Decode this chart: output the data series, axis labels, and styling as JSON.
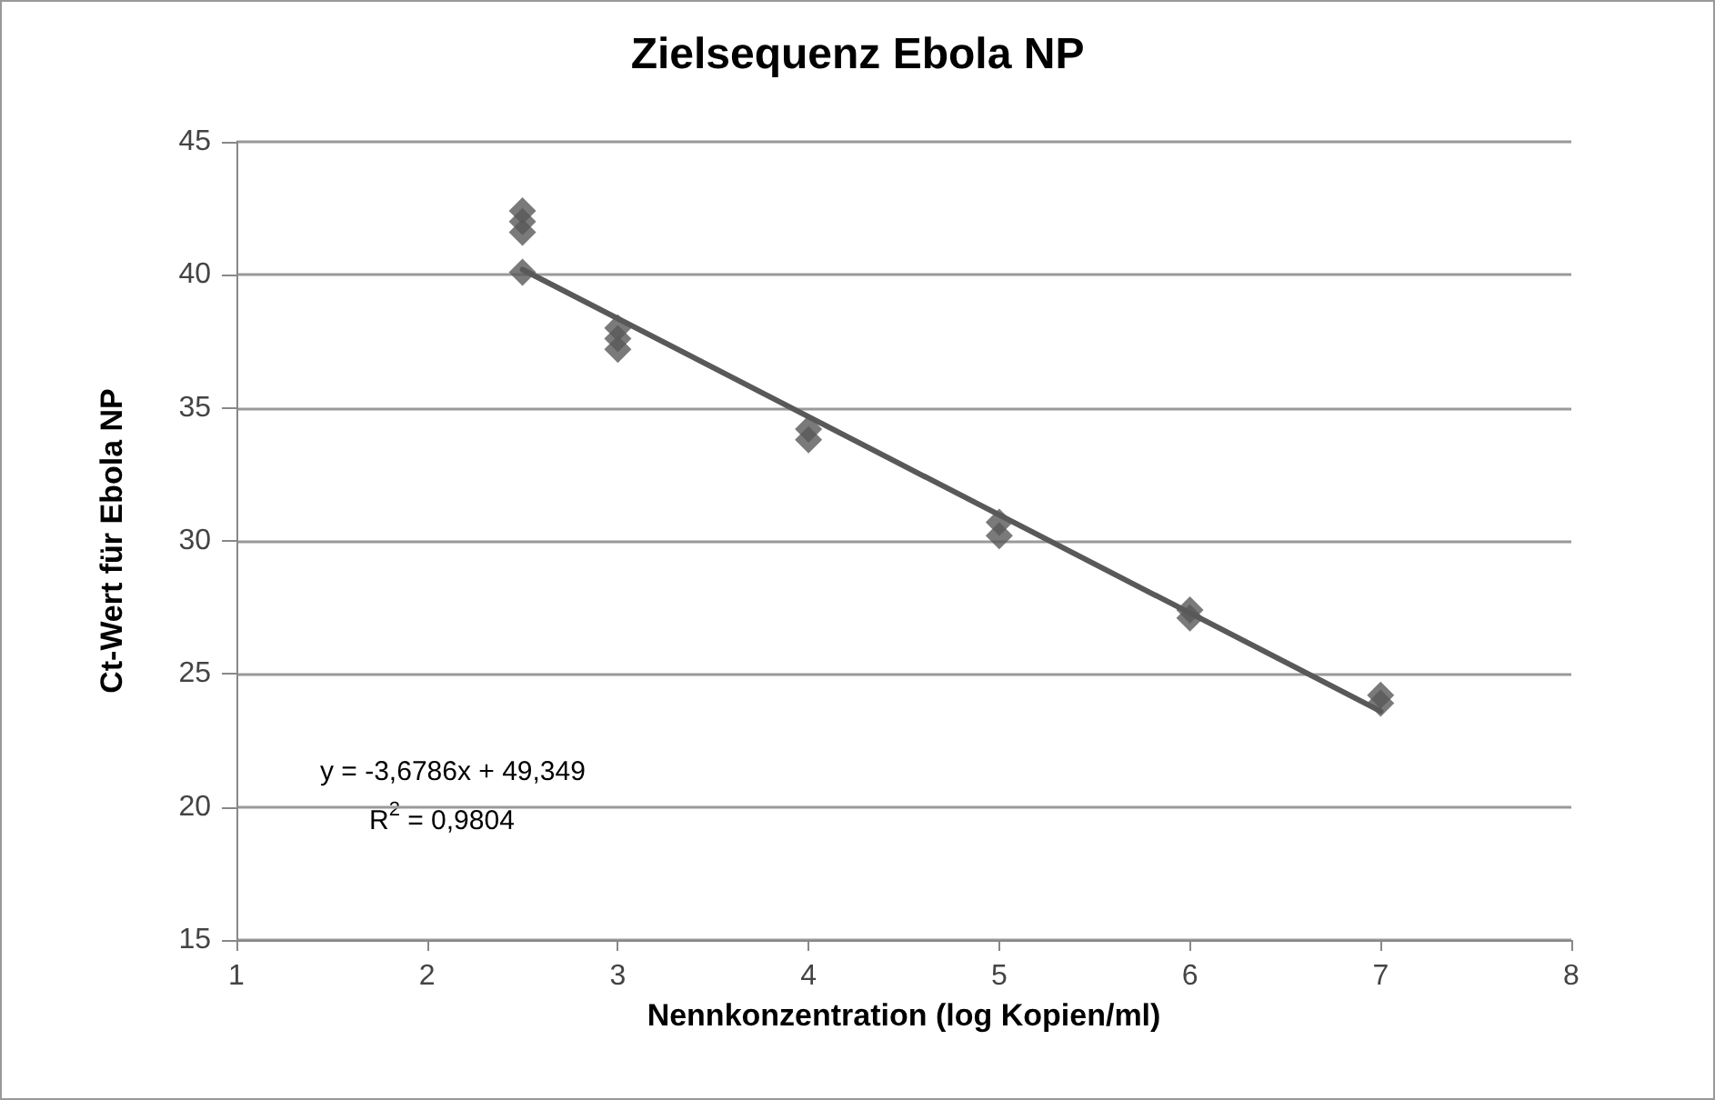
{
  "chart_data": {
    "type": "scatter",
    "title": "Zielsequenz Ebola NP",
    "xlabel": "Nennkonzentration (log Kopien/ml)",
    "ylabel": "Ct-Wert für Ebola NP",
    "series": [
      {
        "color": "#595959",
        "marker": "diamond",
        "x": [
          2.5,
          2.5,
          2.5,
          2.5,
          3,
          3,
          3,
          4,
          4,
          5,
          5,
          6,
          6,
          7,
          7
        ],
        "values": [
          42.4,
          42.0,
          41.6,
          40.1,
          38.0,
          37.6,
          37.2,
          34.2,
          33.8,
          30.7,
          30.2,
          27.4,
          27.1,
          24.2,
          23.9
        ]
      },
      {
        "type": "line",
        "color": "#595959",
        "marker": "none",
        "x": [
          2.5,
          7
        ],
        "values": [
          40.2,
          23.6
        ]
      }
    ],
    "annotations": [
      "y = -3,6786x + 49,349",
      "R$^{2}$ = 0,9804"
    ],
    "xlim": [
      1,
      8
    ],
    "xticks": [
      1,
      2,
      3,
      4,
      5,
      6,
      7,
      8
    ],
    "ylim": [
      15,
      45
    ],
    "yticks": [
      15,
      20,
      25,
      30,
      35,
      40,
      45
    ],
    "grid": "y"
  }
}
